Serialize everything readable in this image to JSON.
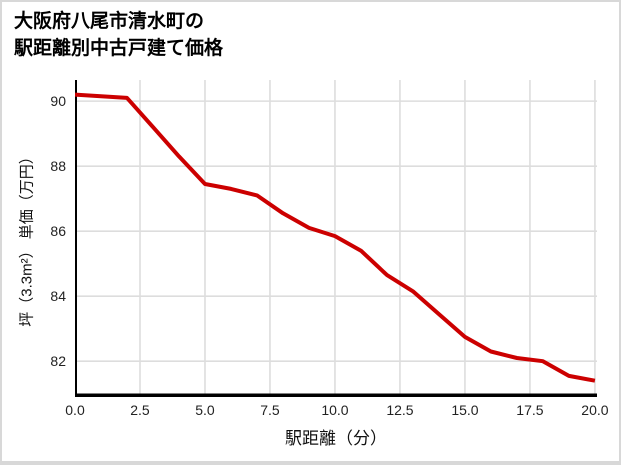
{
  "frame": {
    "background": "#ffffff",
    "border_color": "#d8d8d8"
  },
  "title": {
    "line1": "大阪府八尾市清水町の",
    "line2": "駅距離別中古戸建て価格"
  },
  "axes": {
    "x_label": "駅距離（分）",
    "y_label": "坪（3.3m²） 単価（万円）"
  },
  "chart_data": {
    "type": "line",
    "title": "大阪府八尾市清水町の駅距離別中古戸建て価格",
    "xlabel": "駅距離（分）",
    "ylabel": "坪（3.3m²） 単価（万円）",
    "x": [
      0,
      1,
      2,
      3,
      4,
      5,
      6,
      7,
      8,
      9,
      10,
      11,
      12,
      13,
      14,
      15,
      16,
      17,
      18,
      19,
      20
    ],
    "y": [
      90.2,
      90.15,
      90.1,
      89.2,
      88.3,
      87.45,
      87.3,
      87.1,
      86.55,
      86.1,
      85.85,
      85.4,
      84.65,
      84.15,
      83.45,
      82.75,
      82.3,
      82.1,
      82.0,
      81.55,
      81.4
    ],
    "xticks": [
      0,
      2.5,
      5,
      7.5,
      10,
      12.5,
      15,
      17.5,
      20
    ],
    "xtick_labels": [
      "0.0",
      "2.5",
      "5.0",
      "7.5",
      "10.0",
      "12.5",
      "15.0",
      "17.5",
      "20.0"
    ],
    "yticks": [
      82,
      84,
      86,
      88,
      90
    ],
    "ytick_labels": [
      "82",
      "84",
      "86",
      "88",
      "90"
    ],
    "xlim": [
      0,
      20.08
    ],
    "ylim": [
      80.9,
      90.65
    ],
    "grid": true,
    "legend": false,
    "line_color": "#cc0000",
    "line_width": 4,
    "grid_color": "#dddddd",
    "axis_color": "#000000",
    "tick_color": "#222222"
  }
}
